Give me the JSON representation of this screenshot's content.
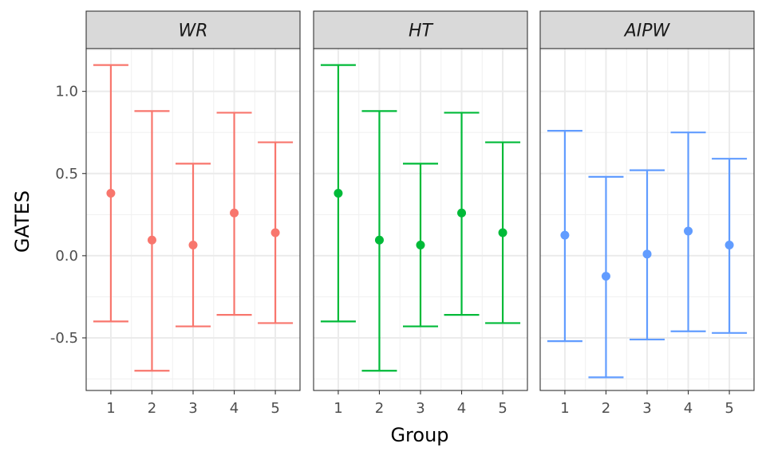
{
  "chart_data": {
    "type": "errorbar",
    "xlabel": "Group",
    "ylabel": "GATES",
    "ylim": [
      -0.82,
      1.26
    ],
    "yticks": [
      -0.5,
      0.0,
      0.5,
      1.0
    ],
    "ytick_labels": [
      "-0.5",
      "0.0",
      "0.5",
      "1.0"
    ],
    "categories": [
      "1",
      "2",
      "3",
      "4",
      "5"
    ],
    "grid": true,
    "legend": "none",
    "panels": [
      {
        "name": "WR",
        "color": "#F8766D",
        "estimate": [
          0.38,
          0.095,
          0.065,
          0.26,
          0.14
        ],
        "lower": [
          -0.4,
          -0.7,
          -0.43,
          -0.36,
          -0.41
        ],
        "upper": [
          1.16,
          0.88,
          0.56,
          0.87,
          0.69
        ]
      },
      {
        "name": "HT",
        "color": "#00BA38",
        "estimate": [
          0.38,
          0.095,
          0.065,
          0.26,
          0.14
        ],
        "lower": [
          -0.4,
          -0.7,
          -0.43,
          -0.36,
          -0.41
        ],
        "upper": [
          1.16,
          0.88,
          0.56,
          0.87,
          0.69
        ]
      },
      {
        "name": "AIPW",
        "color": "#619CFF",
        "estimate": [
          0.125,
          -0.125,
          0.01,
          0.15,
          0.065
        ],
        "lower": [
          -0.52,
          -0.74,
          -0.51,
          -0.46,
          -0.47
        ],
        "upper": [
          0.76,
          0.48,
          0.52,
          0.75,
          0.59
        ]
      }
    ]
  }
}
